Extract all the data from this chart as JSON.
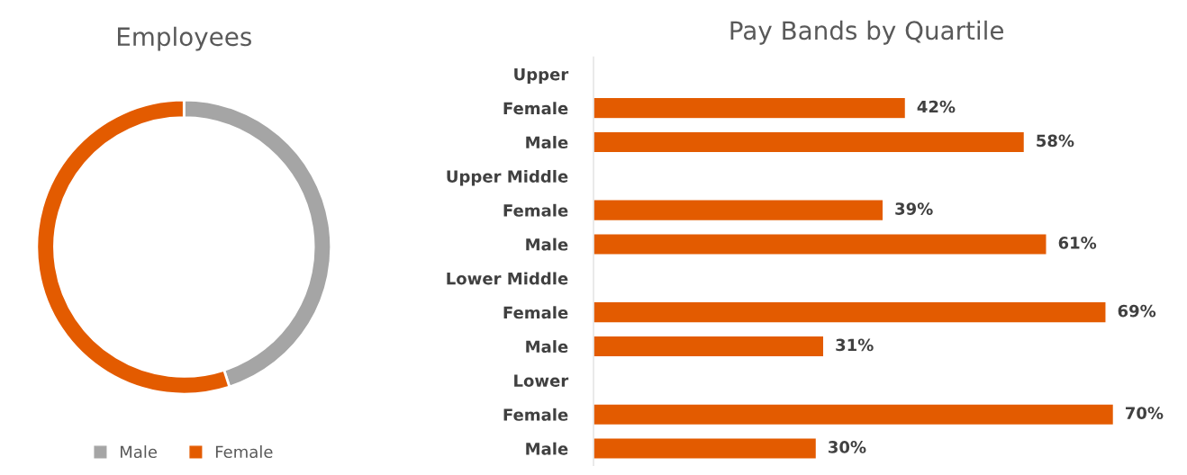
{
  "chart_data": [
    {
      "type": "donut",
      "title": "Employees",
      "categories": [
        "Male",
        "Female"
      ],
      "values": [
        45,
        55
      ],
      "colors": [
        "#a5a5a5",
        "#e35b00"
      ],
      "legend": "bottom"
    },
    {
      "type": "bar",
      "title": "Pay Bands by Quartile",
      "orientation": "horizontal",
      "categories": [
        "Upper",
        "Female",
        "Male",
        "Upper Middle",
        "Female",
        "Male",
        "Lower Middle",
        "Female",
        "Male",
        "Lower",
        "Female",
        "Male"
      ],
      "values": [
        null,
        42,
        58,
        null,
        39,
        61,
        null,
        69,
        31,
        null,
        70,
        30
      ],
      "value_labels": [
        null,
        "42%",
        "58%",
        null,
        "39%",
        "61%",
        null,
        "69%",
        "31%",
        null,
        "70%",
        "30%"
      ],
      "color": "#e35b00",
      "tick_labels": "y",
      "grid": false,
      "legend": false
    }
  ]
}
